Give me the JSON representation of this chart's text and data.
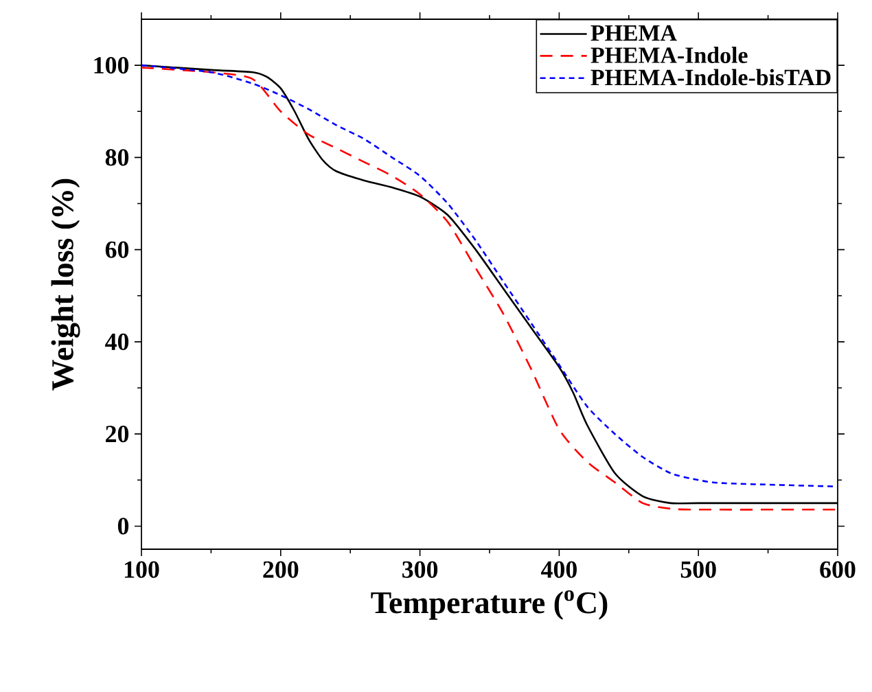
{
  "chart_data": {
    "type": "line",
    "xlabel": "Temperature ($^{o}$C)",
    "ylabel": "Weight loss (%)",
    "xlim": [
      100,
      600
    ],
    "ylim": [
      -5,
      110
    ],
    "xticks": [
      100,
      200,
      300,
      400,
      500,
      600
    ],
    "yticks": [
      0,
      20,
      40,
      60,
      80,
      100
    ],
    "grid": false,
    "legend": "top right",
    "marker": "none",
    "series": [
      {
        "name": "PHEMA",
        "color": "#000000",
        "line_style": "solid",
        "x": [
          100,
          150,
          180,
          190,
          200,
          210,
          220,
          230,
          240,
          260,
          280,
          300,
          320,
          340,
          360,
          380,
          400,
          410,
          420,
          440,
          460,
          480,
          500,
          600
        ],
        "values": [
          100,
          99,
          98.5,
          97.5,
          95,
          90,
          84,
          79.5,
          77,
          75,
          73.5,
          71.5,
          67.5,
          60,
          51.5,
          43,
          34.5,
          29,
          22,
          11.5,
          6.5,
          5,
          5,
          5
        ]
      },
      {
        "name": "PHEMA-Indole",
        "color": "#ff0000",
        "line_style": "dashed",
        "x": [
          100,
          150,
          180,
          200,
          220,
          240,
          260,
          280,
          300,
          320,
          340,
          360,
          380,
          400,
          420,
          440,
          460,
          480,
          500,
          600
        ],
        "values": [
          99.5,
          98.5,
          97,
          90,
          85,
          82,
          79,
          76,
          72,
          66,
          56,
          46,
          34,
          21,
          14,
          9.5,
          5,
          3.8,
          3.6,
          3.6
        ]
      },
      {
        "name": "PHEMA-Indole-bisTAD",
        "color": "#0000ff",
        "line_style": "dotted",
        "x": [
          100,
          150,
          180,
          200,
          220,
          240,
          260,
          280,
          300,
          320,
          340,
          360,
          380,
          400,
          420,
          440,
          460,
          480,
          500,
          520,
          600
        ],
        "values": [
          100,
          98.5,
          96,
          93.5,
          90.5,
          87,
          84,
          80,
          76,
          70,
          62,
          53,
          44,
          35,
          26,
          20,
          15,
          11.5,
          10,
          9.3,
          8.6
        ]
      }
    ]
  }
}
